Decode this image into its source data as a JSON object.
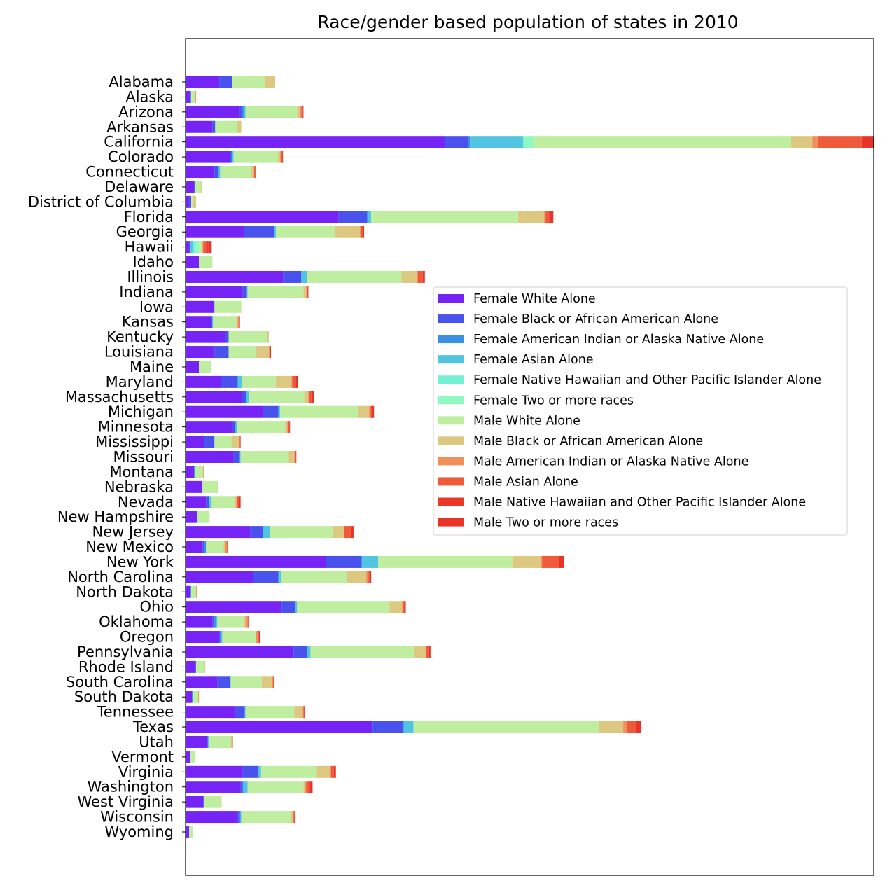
{
  "chart_data": {
    "type": "bar",
    "orientation": "horizontal",
    "stacked": true,
    "title": "Race/gender based population of states in 2010",
    "xlabel": "",
    "ylabel": "",
    "x_axis_visible": false,
    "grid": false,
    "legend_position": "right-center",
    "categories": [
      "Alabama",
      "Alaska",
      "Arizona",
      "Arkansas",
      "California",
      "Colorado",
      "Connecticut",
      "Delaware",
      "District of Columbia",
      "Florida",
      "Georgia",
      "Hawaii",
      "Idaho",
      "Illinois",
      "Indiana",
      "Iowa",
      "Kansas",
      "Kentucky",
      "Louisiana",
      "Maine",
      "Maryland",
      "Massachusetts",
      "Michigan",
      "Minnesota",
      "Mississippi",
      "Missouri",
      "Montana",
      "Nebraska",
      "Nevada",
      "New Hampshire",
      "New Jersey",
      "New Mexico",
      "New York",
      "North Carolina",
      "North Dakota",
      "Ohio",
      "Oklahoma",
      "Oregon",
      "Pennsylvania",
      "Rhode Island",
      "South Carolina",
      "South Dakota",
      "Tennessee",
      "Texas",
      "Utah",
      "Vermont",
      "Virginia",
      "Washington",
      "West Virginia",
      "Wisconsin",
      "Wyoming"
    ],
    "series": [
      {
        "name": "Female White Alone",
        "color": "#7524f5",
        "values": [
          48,
          6,
          77,
          38,
          367,
          63,
          41,
          12,
          5,
          217,
          83,
          5,
          19,
          138,
          81,
          40,
          36,
          57,
          41,
          19,
          50,
          80,
          111,
          67,
          26,
          68,
          12,
          23,
          29,
          17,
          92,
          24,
          199,
          96,
          7,
          136,
          38,
          48,
          153,
          14,
          45,
          9,
          71,
          265,
          31,
          7,
          81,
          78,
          25,
          74,
          5
        ]
      },
      {
        "name": "Female Black or African American Alone",
        "color": "#4a52ed",
        "values": [
          18,
          1,
          3,
          4,
          33,
          2,
          6,
          1,
          3,
          40,
          42,
          1,
          0,
          26,
          6,
          1,
          2,
          4,
          20,
          0,
          24,
          6,
          20,
          3,
          15,
          9,
          0,
          1,
          4,
          0,
          18,
          2,
          50,
          35,
          0,
          20,
          3,
          1,
          19,
          1,
          18,
          0,
          13,
          43,
          1,
          0,
          22,
          3,
          1,
          3,
          0
        ]
      },
      {
        "name": "Female American Indian or Alaska Native Alone",
        "color": "#3c90e4",
        "values": [
          0,
          1,
          3,
          0,
          3,
          1,
          0,
          0,
          0,
          1,
          0,
          0,
          0,
          0,
          0,
          0,
          0,
          0,
          0,
          0,
          0,
          0,
          1,
          1,
          0,
          0,
          1,
          0,
          1,
          0,
          0,
          3,
          1,
          2,
          1,
          0,
          3,
          1,
          0,
          0,
          0,
          1,
          0,
          1,
          0,
          0,
          0,
          1,
          0,
          1,
          0
        ]
      },
      {
        "name": "Female Asian Alone",
        "color": "#50c4e0",
        "values": [
          0,
          0,
          2,
          0,
          75,
          2,
          2,
          0,
          0,
          5,
          3,
          5,
          0,
          8,
          1,
          0,
          1,
          0,
          0,
          0,
          6,
          4,
          2,
          2,
          0,
          1,
          0,
          0,
          3,
          0,
          10,
          0,
          23,
          2,
          0,
          2,
          1,
          2,
          5,
          0,
          1,
          0,
          1,
          14,
          1,
          0,
          4,
          6,
          0,
          1,
          0
        ]
      },
      {
        "name": "Female Native Hawaiian and Other Pacific Islander Alone",
        "color": "#76f0d2",
        "values": [
          0,
          0,
          0,
          0,
          2,
          0,
          0,
          0,
          0,
          0,
          0,
          3,
          0,
          0,
          0,
          0,
          0,
          0,
          0,
          0,
          0,
          0,
          0,
          0,
          0,
          0,
          0,
          0,
          0,
          0,
          0,
          0,
          0,
          0,
          0,
          0,
          0,
          0,
          0,
          0,
          0,
          0,
          0,
          0,
          0,
          0,
          0,
          0,
          0,
          0,
          0
        ]
      },
      {
        "name": "Female Two or more races",
        "color": "#90f8c0",
        "values": [
          0,
          0,
          0,
          0,
          13,
          0,
          0,
          0,
          0,
          0,
          0,
          5,
          0,
          0,
          0,
          0,
          0,
          0,
          0,
          0,
          0,
          0,
          0,
          0,
          0,
          0,
          0,
          0,
          0,
          0,
          0,
          0,
          0,
          0,
          0,
          0,
          0,
          0,
          0,
          0,
          0,
          0,
          0,
          0,
          0,
          0,
          0,
          0,
          0,
          0,
          0
        ]
      },
      {
        "name": "Male White Alone",
        "color": "#c0eea0",
        "values": [
          46,
          5,
          73,
          31,
          365,
          63,
          44,
          9,
          3,
          208,
          84,
          5,
          19,
          134,
          79,
          38,
          33,
          54,
          39,
          17,
          48,
          78,
          110,
          68,
          24,
          68,
          12,
          22,
          32,
          17,
          89,
          25,
          190,
          94,
          7,
          131,
          37,
          47,
          147,
          12,
          44,
          8,
          69,
          263,
          32,
          7,
          79,
          79,
          24,
          70,
          6
        ]
      },
      {
        "name": "Male Black or African American Alone",
        "color": "#dcc880",
        "values": [
          15,
          1,
          4,
          6,
          30,
          3,
          4,
          1,
          4,
          37,
          35,
          0,
          0,
          22,
          4,
          0,
          2,
          3,
          18,
          0,
          22,
          6,
          16,
          3,
          11,
          8,
          0,
          0,
          3,
          0,
          15,
          2,
          40,
          27,
          0,
          18,
          3,
          1,
          16,
          1,
          15,
          0,
          12,
          34,
          0,
          0,
          19,
          2,
          1,
          3,
          0
        ]
      },
      {
        "name": "Male American Indian or Alaska Native Alone",
        "color": "#f0905a",
        "values": [
          0,
          1,
          2,
          0,
          8,
          1,
          0,
          0,
          0,
          2,
          1,
          1,
          0,
          1,
          1,
          0,
          1,
          0,
          1,
          0,
          1,
          1,
          2,
          1,
          1,
          1,
          1,
          0,
          1,
          0,
          1,
          3,
          2,
          3,
          1,
          1,
          3,
          2,
          1,
          0,
          1,
          1,
          1,
          5,
          1,
          0,
          1,
          2,
          0,
          1,
          0
        ]
      },
      {
        "name": "Male Asian Alone",
        "color": "#ee5a3a",
        "values": [
          0,
          0,
          2,
          0,
          62,
          2,
          2,
          0,
          0,
          5,
          3,
          4,
          0,
          7,
          1,
          0,
          1,
          0,
          1,
          0,
          5,
          4,
          2,
          2,
          0,
          1,
          0,
          0,
          3,
          0,
          9,
          0,
          24,
          2,
          0,
          2,
          1,
          2,
          4,
          0,
          1,
          0,
          1,
          13,
          1,
          0,
          4,
          5,
          0,
          1,
          0
        ]
      },
      {
        "name": "Male Native Hawaiian and Other Pacific Islander Alone",
        "color": "#ec3828",
        "values": [
          0,
          0,
          0,
          0,
          2,
          0,
          0,
          0,
          0,
          0,
          0,
          3,
          0,
          0,
          0,
          0,
          0,
          0,
          0,
          0,
          0,
          0,
          0,
          0,
          0,
          0,
          0,
          0,
          0,
          0,
          0,
          0,
          0,
          0,
          0,
          0,
          0,
          0,
          0,
          0,
          0,
          0,
          0,
          0,
          0,
          0,
          0,
          0,
          0,
          0,
          0
        ]
      },
      {
        "name": "Male Two or more races",
        "color": "#e83428",
        "values": [
          0,
          0,
          1,
          0,
          15,
          1,
          1,
          0,
          0,
          6,
          2,
          5,
          0,
          3,
          1,
          0,
          1,
          0,
          1,
          0,
          3,
          3,
          3,
          1,
          1,
          1,
          0,
          0,
          2,
          0,
          4,
          1,
          7,
          2,
          0,
          2,
          1,
          2,
          2,
          0,
          1,
          0,
          1,
          7,
          0,
          0,
          3,
          4,
          0,
          1,
          0
        ]
      }
    ]
  }
}
